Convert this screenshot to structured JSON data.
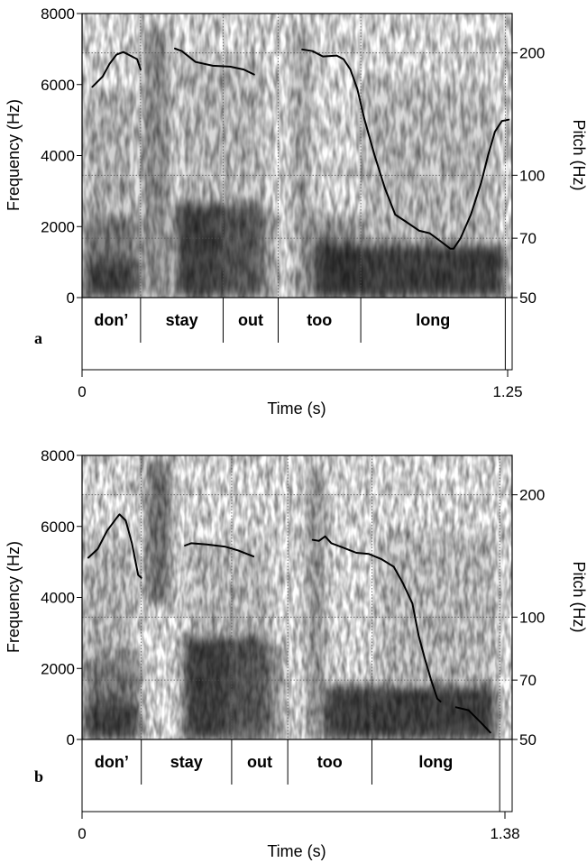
{
  "chart_data": [
    {
      "type": "spectrogram",
      "panel_label": "a",
      "xlabel": "Time (s)",
      "ylabel": "Frequency (Hz)",
      "y2label": "Pitch (Hz)",
      "xlim": [
        0,
        1.25
      ],
      "x_tick_labels": [
        "0",
        "1.25"
      ],
      "ylim": [
        0,
        8000
      ],
      "y_ticks": [
        0,
        2000,
        4000,
        6000,
        8000
      ],
      "y2_ticks": [
        50,
        70,
        100,
        200
      ],
      "words": [
        {
          "text": "don’",
          "start": 0.0,
          "end": 0.17
        },
        {
          "text": "stay",
          "start": 0.17,
          "end": 0.41
        },
        {
          "text": "out",
          "start": 0.41,
          "end": 0.57
        },
        {
          "text": "too",
          "start": 0.57,
          "end": 0.81
        },
        {
          "text": "long",
          "start": 0.81,
          "end": 1.23
        }
      ],
      "pitch_segments": [
        [
          [
            0.03,
            165
          ],
          [
            0.06,
            175
          ],
          [
            0.08,
            188
          ],
          [
            0.1,
            198
          ],
          [
            0.12,
            201
          ],
          [
            0.14,
            197
          ],
          [
            0.16,
            193
          ],
          [
            0.17,
            182
          ]
        ],
        [
          [
            0.27,
            205
          ],
          [
            0.29,
            202
          ],
          [
            0.33,
            190
          ],
          [
            0.38,
            186
          ],
          [
            0.43,
            185
          ],
          [
            0.47,
            182
          ],
          [
            0.5,
            177
          ]
        ],
        [
          [
            0.64,
            204
          ],
          [
            0.67,
            202
          ],
          [
            0.7,
            196
          ],
          [
            0.74,
            197
          ],
          [
            0.76,
            193
          ],
          [
            0.78,
            182
          ],
          [
            0.8,
            163
          ],
          [
            0.82,
            138
          ],
          [
            0.85,
            112
          ],
          [
            0.88,
            93
          ],
          [
            0.91,
            80
          ],
          [
            0.94,
            77
          ],
          [
            0.98,
            73
          ],
          [
            1.01,
            72
          ],
          [
            1.04,
            69
          ],
          [
            1.07,
            66
          ],
          [
            1.08,
            66
          ],
          [
            1.1,
            70
          ],
          [
            1.13,
            80
          ],
          [
            1.16,
            96
          ],
          [
            1.18,
            112
          ],
          [
            1.2,
            128
          ],
          [
            1.22,
            136
          ],
          [
            1.24,
            137
          ]
        ]
      ]
    },
    {
      "type": "spectrogram",
      "panel_label": "b",
      "xlabel": "Time (s)",
      "ylabel": "Frequency (Hz)",
      "y2label": "Pitch (Hz)",
      "xlim": [
        0,
        1.38
      ],
      "x_tick_labels": [
        "0",
        "1.38"
      ],
      "ylim": [
        0,
        8000
      ],
      "y_ticks": [
        0,
        2000,
        4000,
        6000,
        8000
      ],
      "y2_ticks": [
        50,
        70,
        100,
        200
      ],
      "words": [
        {
          "text": "don’",
          "start": 0.0,
          "end": 0.19
        },
        {
          "text": "stay",
          "start": 0.19,
          "end": 0.48
        },
        {
          "text": "out",
          "start": 0.48,
          "end": 0.66
        },
        {
          "text": "too",
          "start": 0.66,
          "end": 0.93
        },
        {
          "text": "long",
          "start": 0.93,
          "end": 1.34
        }
      ],
      "pitch_segments": [
        [
          [
            0.02,
            140
          ],
          [
            0.05,
            147
          ],
          [
            0.08,
            163
          ],
          [
            0.11,
            175
          ],
          [
            0.12,
            179
          ],
          [
            0.14,
            173
          ],
          [
            0.16,
            152
          ],
          [
            0.18,
            127
          ],
          [
            0.19,
            125
          ]
        ],
        [
          [
            0.33,
            150
          ],
          [
            0.35,
            152
          ],
          [
            0.4,
            151
          ],
          [
            0.46,
            149
          ],
          [
            0.5,
            146
          ],
          [
            0.55,
            141
          ]
        ],
        [
          [
            0.74,
            155
          ],
          [
            0.76,
            154
          ],
          [
            0.78,
            158
          ],
          [
            0.8,
            152
          ],
          [
            0.84,
            148
          ],
          [
            0.88,
            144
          ],
          [
            0.92,
            143
          ],
          [
            0.96,
            139
          ],
          [
            1.0,
            133
          ],
          [
            1.03,
            121
          ],
          [
            1.06,
            108
          ],
          [
            1.08,
            90
          ],
          [
            1.1,
            79
          ],
          [
            1.12,
            70
          ],
          [
            1.14,
            63
          ],
          [
            1.15,
            62
          ]
        ],
        [
          [
            1.2,
            60
          ],
          [
            1.24,
            59
          ],
          [
            1.28,
            55
          ],
          [
            1.31,
            52
          ]
        ]
      ]
    }
  ]
}
